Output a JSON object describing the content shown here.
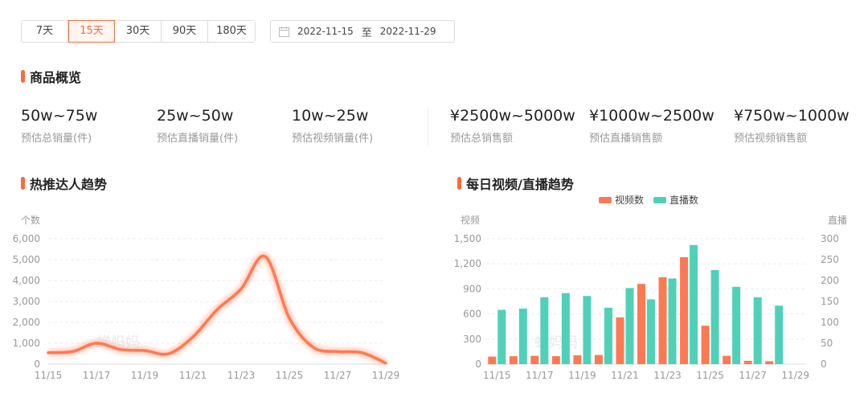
{
  "ranges": [
    {
      "label": "7天",
      "active": false
    },
    {
      "label": "15天",
      "active": true
    },
    {
      "label": "30天",
      "active": false
    },
    {
      "label": "90天",
      "active": false
    },
    {
      "label": "180天",
      "active": false
    }
  ],
  "date_range": {
    "start": "2022-11-15",
    "separator": "至",
    "end": "2022-11-29"
  },
  "overview": {
    "title": "商品概览",
    "metrics": [
      {
        "value": "50w~75w",
        "label": "预估总销量(件)"
      },
      {
        "value": "25w~50w",
        "label": "预估直播销量(件)"
      },
      {
        "value": "10w~25w",
        "label": "预估视频销量(件)"
      },
      {
        "value": "¥2500w~5000w",
        "label": "预估总销售额"
      },
      {
        "value": "¥1000w~2500w",
        "label": "预估直播销售额"
      },
      {
        "value": "¥750w~1000w",
        "label": "预估视频销售额"
      }
    ]
  },
  "colors": {
    "accent": "#ff6a3c",
    "video": "#fb7a53",
    "live": "#4fd1b8",
    "line": "#ff7a50"
  },
  "chart_data": [
    {
      "type": "line",
      "title": "热推达人趋势",
      "ylabel": "个数",
      "ylim": [
        0,
        6000
      ],
      "yticks": [
        "0",
        "1,000",
        "2,000",
        "3,000",
        "4,000",
        "5,000",
        "6,000"
      ],
      "x": [
        "11/15",
        "11/16",
        "11/17",
        "11/18",
        "11/19",
        "11/20",
        "11/21",
        "11/22",
        "11/23",
        "11/24",
        "11/25",
        "11/26",
        "11/27",
        "11/28",
        "11/29"
      ],
      "xtick_labels": [
        "11/15",
        "11/17",
        "11/19",
        "11/21",
        "11/23",
        "11/25",
        "11/27",
        "11/29"
      ],
      "values": [
        550,
        600,
        1000,
        700,
        650,
        500,
        1300,
        2600,
        3600,
        5150,
        2200,
        800,
        600,
        550,
        50
      ],
      "watermark": "蝉妈妈"
    },
    {
      "type": "bar",
      "title": "每日视频/直播趋势",
      "ylabel_left": "视频",
      "ylabel_right": "直播",
      "ylim_left": [
        0,
        1500
      ],
      "ylim_right": [
        0,
        300
      ],
      "yticks_left": [
        "0",
        "300",
        "600",
        "900",
        "1,200",
        "1,500"
      ],
      "yticks_right": [
        "0",
        "50",
        "100",
        "150",
        "200",
        "250",
        "300"
      ],
      "categories": [
        "11/15",
        "11/16",
        "11/17",
        "11/18",
        "11/19",
        "11/20",
        "11/21",
        "11/22",
        "11/23",
        "11/24",
        "11/25",
        "11/26",
        "11/27",
        "11/28",
        "11/29"
      ],
      "xtick_labels": [
        "11/15",
        "11/17",
        "11/19",
        "11/21",
        "11/23",
        "11/25",
        "11/27",
        "11/29"
      ],
      "series": [
        {
          "name": "视频数",
          "axis": "left",
          "values": [
            90,
            95,
            100,
            95,
            105,
            110,
            560,
            960,
            1040,
            1280,
            460,
            100,
            40,
            35,
            0
          ]
        },
        {
          "name": "直播数",
          "axis": "right",
          "values": [
            130,
            133,
            160,
            170,
            163,
            135,
            182,
            155,
            205,
            285,
            225,
            185,
            160,
            140,
            0
          ]
        }
      ],
      "legend_position": "top-center",
      "watermark": "蝉妈妈"
    }
  ]
}
